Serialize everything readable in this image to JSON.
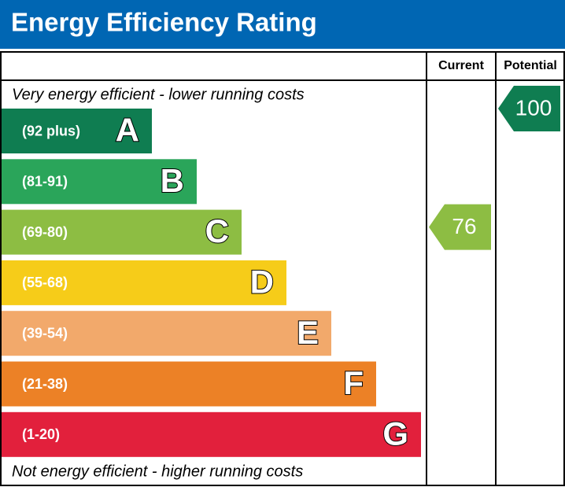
{
  "title": "Energy Efficiency Rating",
  "headers": {
    "current": "Current",
    "potential": "Potential"
  },
  "top_note": "Very energy efficient - lower running costs",
  "bottom_note": "Not energy efficient - higher running costs",
  "bands": [
    {
      "range": "(92 plus)",
      "letter": "A",
      "color": "#0f7d51"
    },
    {
      "range": "(81-91)",
      "letter": "B",
      "color": "#2aa55a"
    },
    {
      "range": "(69-80)",
      "letter": "C",
      "color": "#8dbd43"
    },
    {
      "range": "(55-68)",
      "letter": "D",
      "color": "#f6cc19"
    },
    {
      "range": "(39-54)",
      "letter": "E",
      "color": "#f2a96b"
    },
    {
      "range": "(21-38)",
      "letter": "F",
      "color": "#ec8126"
    },
    {
      "range": "(1-20)",
      "letter": "G",
      "color": "#e2203c"
    }
  ],
  "current": 76,
  "potential": 100
}
